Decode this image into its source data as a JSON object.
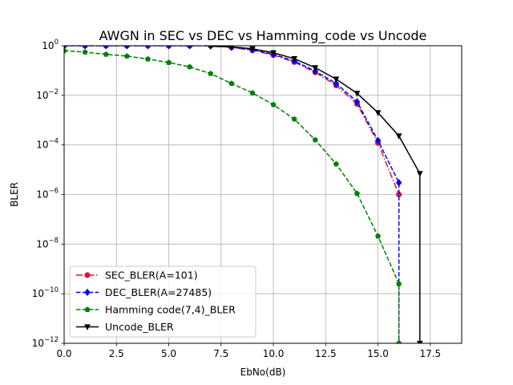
{
  "chart_data": {
    "type": "line",
    "title": "AWGN in SEC vs DEC vs Hamming_code vs Uncode",
    "xlabel": "EbNo(dB)",
    "ylabel": "BLER",
    "xlim": [
      0,
      19
    ],
    "ylim": [
      1e-12,
      1
    ],
    "yscale": "log",
    "grid": true,
    "legend_position": "lower-left",
    "xticks": [
      {
        "value": 0,
        "label": "0.0"
      },
      {
        "value": 2.5,
        "label": "2.5"
      },
      {
        "value": 5,
        "label": "5.0"
      },
      {
        "value": 7.5,
        "label": "7.5"
      },
      {
        "value": 10,
        "label": "10.0"
      },
      {
        "value": 12.5,
        "label": "12.5"
      },
      {
        "value": 15,
        "label": "15.0"
      },
      {
        "value": 17.5,
        "label": "17.5"
      }
    ],
    "yticks": [
      {
        "value": 1e-12,
        "base": "10",
        "exp": "−12"
      },
      {
        "value": 1e-10,
        "base": "10",
        "exp": "−10"
      },
      {
        "value": 1e-08,
        "base": "10",
        "exp": "−8"
      },
      {
        "value": 1e-06,
        "base": "10",
        "exp": "−6"
      },
      {
        "value": 0.0001,
        "base": "10",
        "exp": "−4"
      },
      {
        "value": 0.01,
        "base": "10",
        "exp": "−2"
      },
      {
        "value": 1,
        "base": "10",
        "exp": "0"
      }
    ],
    "series": [
      {
        "name": "SEC_BLER(A=101)",
        "color": "#dc143c",
        "marker": "circle",
        "linestyle": "dashdot",
        "x": [
          0,
          1,
          2,
          3,
          4,
          5,
          6,
          7,
          8,
          9,
          10,
          11,
          12,
          13,
          14,
          15,
          16
        ],
        "y": [
          1,
          1,
          1,
          1,
          1,
          1,
          1,
          0.99,
          0.85,
          0.65,
          0.42,
          0.22,
          0.085,
          0.025,
          0.0045,
          0.00012,
          1e-06
        ]
      },
      {
        "name": "DEC_BLER(A=27485)",
        "color": "#0000ff",
        "marker": "diamond",
        "linestyle": "dashed",
        "x": [
          0,
          1,
          2,
          3,
          4,
          5,
          6,
          7,
          8,
          9,
          10,
          11,
          12,
          13,
          14,
          15,
          16,
          16
        ],
        "y": [
          1,
          1,
          1,
          1,
          1,
          1,
          1,
          1,
          0.88,
          0.68,
          0.45,
          0.24,
          0.095,
          0.03,
          0.0055,
          0.00015,
          3e-06,
          1e-12
        ]
      },
      {
        "name": "Hamming code(7,4)_BLER",
        "color": "#008000",
        "marker": "pentagon",
        "linestyle": "dashed",
        "x": [
          0,
          1,
          2,
          3,
          4,
          5,
          6,
          7,
          8,
          9,
          10,
          11,
          12,
          13,
          14,
          15,
          16,
          16
        ],
        "y": [
          0.63,
          0.55,
          0.45,
          0.38,
          0.29,
          0.21,
          0.14,
          0.075,
          0.03,
          0.0125,
          0.0042,
          0.0011,
          0.00016,
          1.7e-05,
          1.1e-06,
          2.1e-08,
          2.5e-10,
          1e-12
        ]
      },
      {
        "name": "Uncode_BLER",
        "color": "#000000",
        "marker": "triangle-down",
        "linestyle": "solid",
        "x": [
          7,
          8,
          9,
          10,
          11,
          12,
          13,
          14,
          15,
          16,
          17,
          17
        ],
        "y": [
          0.95,
          0.9,
          0.75,
          0.52,
          0.3,
          0.13,
          0.045,
          0.012,
          0.002,
          0.00023,
          7e-06,
          1e-12
        ]
      }
    ]
  }
}
